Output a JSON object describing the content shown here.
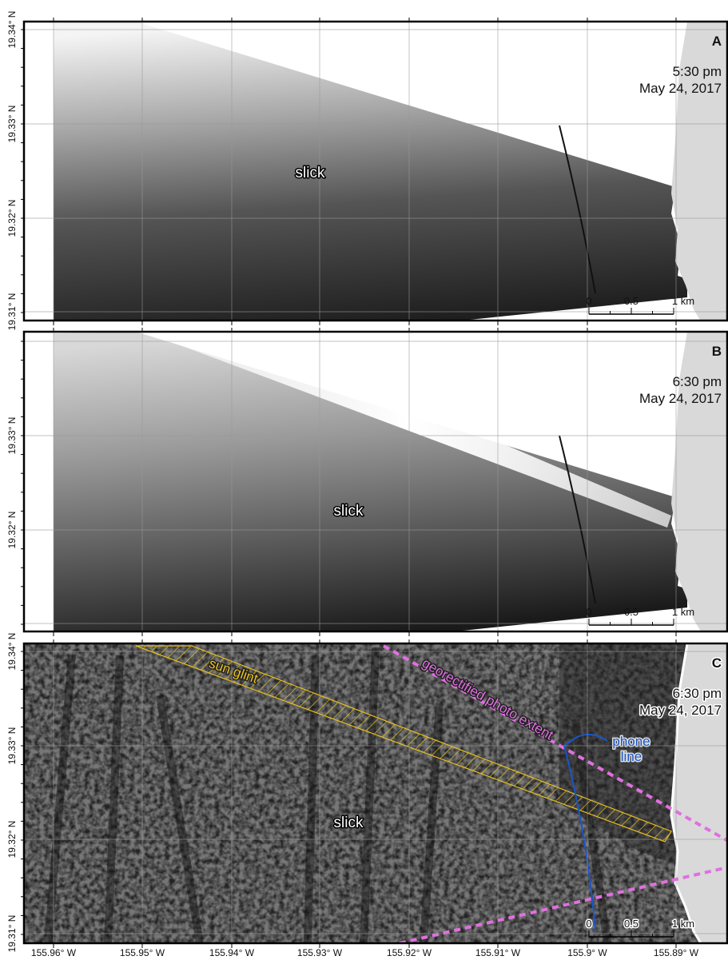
{
  "x_labels": [
    "155.96° W",
    "155.95° W",
    "155.94° W",
    "155.93° W",
    "155.92° W",
    "155.91° W",
    "155.9° W",
    "155.89° W"
  ],
  "panels": [
    {
      "label": "A",
      "time": "5:30 pm",
      "date": "May 24, 2017",
      "slick": "slick",
      "y_labels": [
        "19.34° N",
        "19.33° N",
        "19.32° N",
        "19.31° N"
      ],
      "scale": [
        "0",
        "0.5",
        "1 km"
      ]
    },
    {
      "label": "B",
      "time": "6:30 pm",
      "date": "May 24, 2017",
      "slick": "slick",
      "y_labels": [
        "19.33° N",
        "19.32° N"
      ],
      "scale": [
        "0",
        "0.5",
        "1 km"
      ]
    },
    {
      "label": "C",
      "time": "6:30 pm",
      "date": "May 24, 2017",
      "slick": "slick",
      "y_labels": [
        "19.34° N",
        "19.33° N",
        "19.32° N",
        "19.31° N"
      ],
      "scale": [
        "0",
        "0.5",
        "1 km"
      ],
      "sun_glint": "sun glint",
      "photo_extent": "georectified photo extent",
      "phone_line": [
        "phone",
        "line"
      ]
    }
  ]
}
